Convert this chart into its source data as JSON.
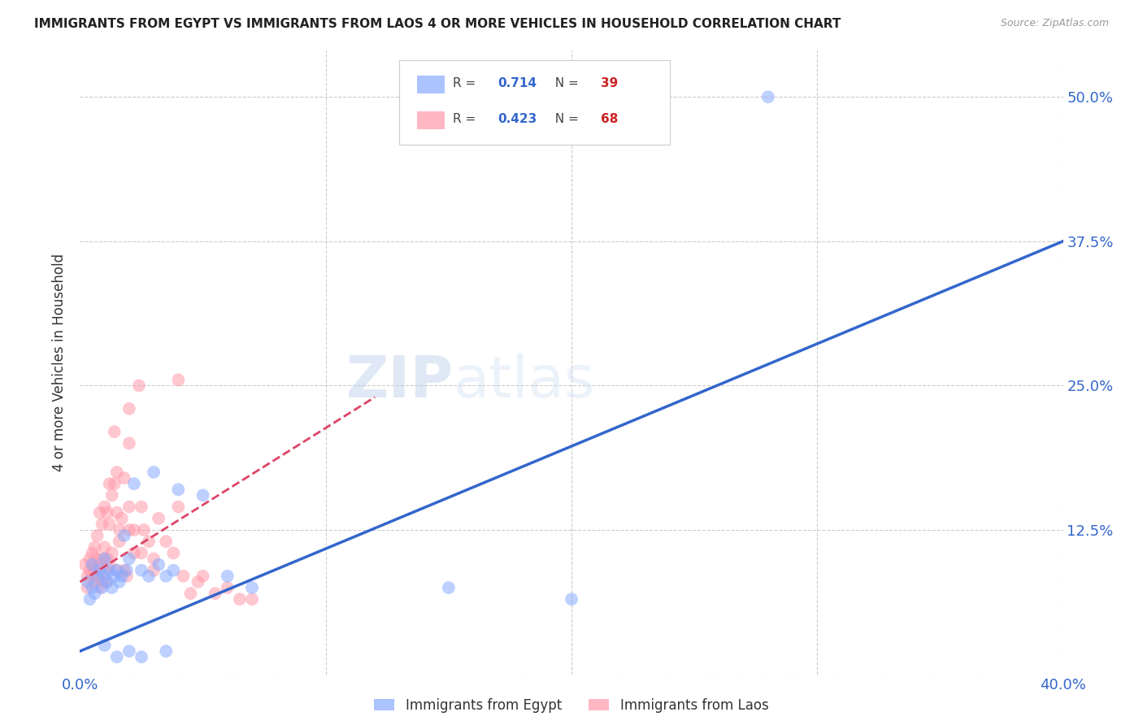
{
  "title": "IMMIGRANTS FROM EGYPT VS IMMIGRANTS FROM LAOS 4 OR MORE VEHICLES IN HOUSEHOLD CORRELATION CHART",
  "source": "Source: ZipAtlas.com",
  "ylabel": "4 or more Vehicles in Household",
  "x_min": 0.0,
  "x_max": 0.4,
  "y_min": 0.0,
  "y_max": 0.54,
  "x_ticks": [
    0.0,
    0.1,
    0.2,
    0.3,
    0.4
  ],
  "y_ticks": [
    0.0,
    0.125,
    0.25,
    0.375,
    0.5
  ],
  "grid_color": "#cccccc",
  "background_color": "#ffffff",
  "egypt_color": "#88aaff",
  "laos_color": "#ff99aa",
  "egypt_R": "0.714",
  "egypt_N": "39",
  "laos_R": "0.423",
  "laos_N": "68",
  "r_color": "#3366cc",
  "n_color": "#cc2222",
  "legend_label_egypt": "Immigrants from Egypt",
  "legend_label_laos": "Immigrants from Laos",
  "watermark": "ZIPatlas",
  "egypt_line_x": [
    0.0,
    0.4
  ],
  "egypt_line_y": [
    0.02,
    0.375
  ],
  "laos_line_x": [
    0.0,
    0.12
  ],
  "laos_line_y": [
    0.08,
    0.24
  ],
  "egypt_scatter": [
    [
      0.003,
      0.08
    ],
    [
      0.004,
      0.065
    ],
    [
      0.005,
      0.075
    ],
    [
      0.005,
      0.095
    ],
    [
      0.006,
      0.07
    ],
    [
      0.007,
      0.085
    ],
    [
      0.008,
      0.09
    ],
    [
      0.009,
      0.075
    ],
    [
      0.01,
      0.1
    ],
    [
      0.01,
      0.085
    ],
    [
      0.011,
      0.08
    ],
    [
      0.012,
      0.09
    ],
    [
      0.013,
      0.075
    ],
    [
      0.014,
      0.085
    ],
    [
      0.015,
      0.09
    ],
    [
      0.016,
      0.08
    ],
    [
      0.017,
      0.085
    ],
    [
      0.018,
      0.12
    ],
    [
      0.019,
      0.09
    ],
    [
      0.02,
      0.1
    ],
    [
      0.022,
      0.165
    ],
    [
      0.025,
      0.09
    ],
    [
      0.028,
      0.085
    ],
    [
      0.03,
      0.175
    ],
    [
      0.032,
      0.095
    ],
    [
      0.035,
      0.085
    ],
    [
      0.038,
      0.09
    ],
    [
      0.04,
      0.16
    ],
    [
      0.05,
      0.155
    ],
    [
      0.06,
      0.085
    ],
    [
      0.07,
      0.075
    ],
    [
      0.15,
      0.075
    ],
    [
      0.2,
      0.065
    ],
    [
      0.01,
      0.025
    ],
    [
      0.015,
      0.015
    ],
    [
      0.02,
      0.02
    ],
    [
      0.025,
      0.015
    ],
    [
      0.035,
      0.02
    ],
    [
      0.28,
      0.5
    ]
  ],
  "laos_scatter": [
    [
      0.002,
      0.095
    ],
    [
      0.003,
      0.075
    ],
    [
      0.003,
      0.085
    ],
    [
      0.004,
      0.09
    ],
    [
      0.004,
      0.1
    ],
    [
      0.005,
      0.095
    ],
    [
      0.005,
      0.105
    ],
    [
      0.005,
      0.085
    ],
    [
      0.006,
      0.11
    ],
    [
      0.006,
      0.09
    ],
    [
      0.006,
      0.08
    ],
    [
      0.007,
      0.12
    ],
    [
      0.007,
      0.1
    ],
    [
      0.007,
      0.085
    ],
    [
      0.008,
      0.14
    ],
    [
      0.008,
      0.095
    ],
    [
      0.008,
      0.075
    ],
    [
      0.009,
      0.13
    ],
    [
      0.009,
      0.1
    ],
    [
      0.009,
      0.08
    ],
    [
      0.01,
      0.145
    ],
    [
      0.01,
      0.11
    ],
    [
      0.01,
      0.09
    ],
    [
      0.011,
      0.14
    ],
    [
      0.011,
      0.1
    ],
    [
      0.011,
      0.08
    ],
    [
      0.012,
      0.165
    ],
    [
      0.012,
      0.13
    ],
    [
      0.012,
      0.095
    ],
    [
      0.013,
      0.155
    ],
    [
      0.013,
      0.105
    ],
    [
      0.014,
      0.21
    ],
    [
      0.014,
      0.165
    ],
    [
      0.015,
      0.175
    ],
    [
      0.015,
      0.14
    ],
    [
      0.015,
      0.09
    ],
    [
      0.016,
      0.125
    ],
    [
      0.016,
      0.115
    ],
    [
      0.017,
      0.135
    ],
    [
      0.018,
      0.17
    ],
    [
      0.018,
      0.09
    ],
    [
      0.019,
      0.085
    ],
    [
      0.02,
      0.23
    ],
    [
      0.02,
      0.2
    ],
    [
      0.02,
      0.145
    ],
    [
      0.02,
      0.125
    ],
    [
      0.022,
      0.125
    ],
    [
      0.022,
      0.105
    ],
    [
      0.024,
      0.25
    ],
    [
      0.025,
      0.145
    ],
    [
      0.025,
      0.105
    ],
    [
      0.026,
      0.125
    ],
    [
      0.028,
      0.115
    ],
    [
      0.03,
      0.1
    ],
    [
      0.03,
      0.09
    ],
    [
      0.032,
      0.135
    ],
    [
      0.035,
      0.115
    ],
    [
      0.038,
      0.105
    ],
    [
      0.04,
      0.255
    ],
    [
      0.04,
      0.145
    ],
    [
      0.042,
      0.085
    ],
    [
      0.045,
      0.07
    ],
    [
      0.048,
      0.08
    ],
    [
      0.05,
      0.085
    ],
    [
      0.055,
      0.07
    ],
    [
      0.06,
      0.075
    ],
    [
      0.065,
      0.065
    ],
    [
      0.07,
      0.065
    ]
  ]
}
